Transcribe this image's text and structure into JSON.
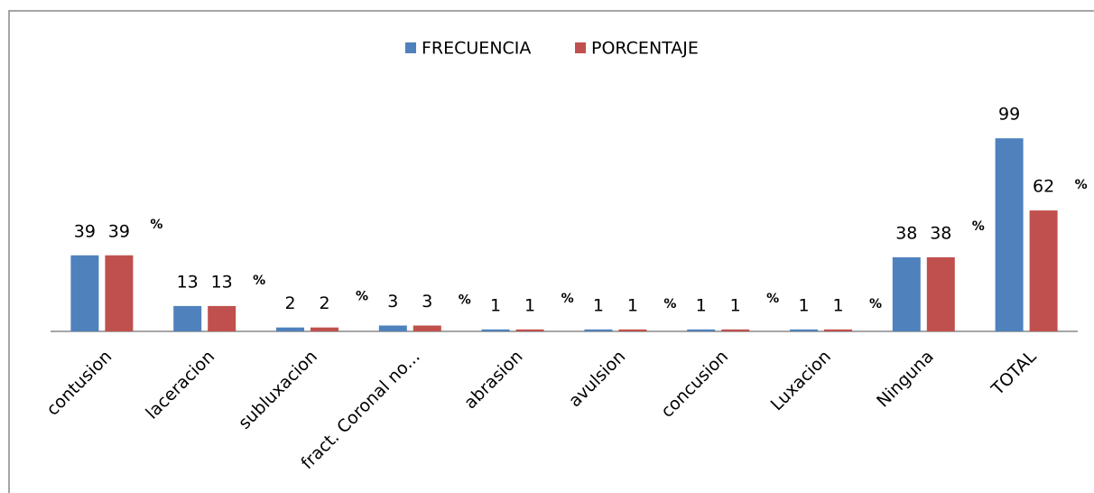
{
  "chart_data": {
    "type": "bar",
    "categories": [
      "contusion",
      "laceracion",
      "subluxacion",
      "fract. Coronal no...",
      "abrasion",
      "avulsion",
      "concusion",
      "Luxacion",
      "Ninguna",
      "TOTAL"
    ],
    "series": [
      {
        "name": "FRECUENCIA",
        "color": "#4f81bd",
        "values": [
          39,
          13,
          2,
          3,
          1,
          1,
          1,
          1,
          38,
          99
        ]
      },
      {
        "name": "PORCENTAJE",
        "color": "#c0504d",
        "values": [
          39,
          13,
          2,
          3,
          1,
          1,
          1,
          1,
          38,
          62
        ]
      }
    ],
    "percent_sign": "%",
    "ylim": [
      0,
      100
    ],
    "legend": "top"
  }
}
